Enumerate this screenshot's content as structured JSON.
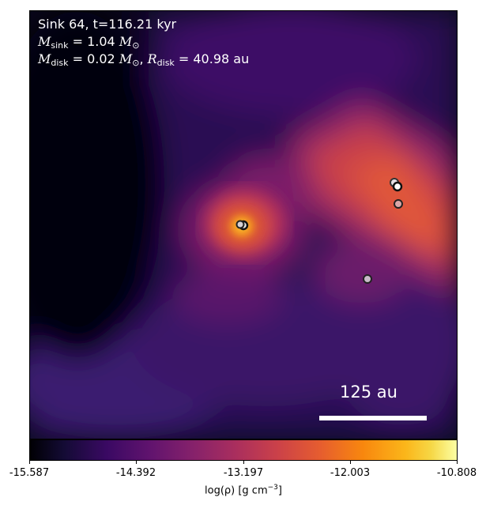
{
  "title_line1": "Sink 64, t=116.21 kyr",
  "mass_sink": "M_sink = 1.04 M_⊙",
  "mass_disk_radius": "M_disk = 0.02 M_⊙, R_disk = 40.98 au",
  "sink_mass_value": "1.04",
  "disk_mass_value": "0.02",
  "disk_radius_value": "40.98",
  "scale_bar_label": "125 au",
  "colormap": "inferno",
  "colorbar": {
    "ticks": [
      "-15.587",
      "-14.392",
      "-13.197",
      "-12.003",
      "-10.808"
    ],
    "label_text": "log(ρ) [g cm",
    "label_exp": "−3",
    "label_close": "]"
  }
}
